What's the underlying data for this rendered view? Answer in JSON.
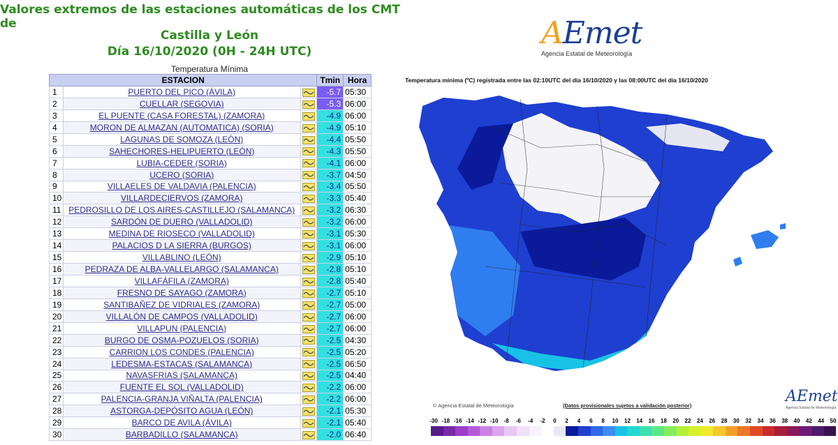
{
  "header": {
    "title_line1": "Valores extremos de las estaciones automáticas de los CMT de",
    "title_line2": "Castilla y León",
    "title_line3": "Día 16/10/2020 (0H - 24H UTC)"
  },
  "table": {
    "caption": "Temperatura Mínima",
    "col_station": "ESTACION",
    "col_tmin": "Tmin",
    "col_hora": "Hora",
    "rows": [
      {
        "n": "1",
        "station": "PUERTO DEL PICO (ÁVILA)",
        "tmin": "-5.7",
        "hora": "05:30",
        "color": "#7b5cf2"
      },
      {
        "n": "2",
        "station": "CUELLAR (SEGOVIA)",
        "tmin": "-5.3",
        "hora": "06:00",
        "color": "#7b5cf2"
      },
      {
        "n": "3",
        "station": "EL PUENTE (CASA FORESTAL) (ZAMORA)",
        "tmin": "-4.9",
        "hora": "06:00",
        "color": "#33e0e0"
      },
      {
        "n": "4",
        "station": "MORON DE ALMAZAN (AUTOMATICA) (SORIA)",
        "tmin": "-4.9",
        "hora": "05:10",
        "color": "#33e0e0"
      },
      {
        "n": "5",
        "station": "LAGUNAS DE SOMOZA (LEÓN)",
        "tmin": "-4.4",
        "hora": "05:50",
        "color": "#33e0e0"
      },
      {
        "n": "6",
        "station": "SAHECHORES-HELIPUERTO (LEÓN)",
        "tmin": "-4.3",
        "hora": "05:50",
        "color": "#33e0e0"
      },
      {
        "n": "7",
        "station": "LUBIA-CEDER (SORIA)",
        "tmin": "-4.1",
        "hora": "06:00",
        "color": "#33e0e0"
      },
      {
        "n": "8",
        "station": "UCERO (SORIA)",
        "tmin": "-3.7",
        "hora": "04:50",
        "color": "#33e0e0"
      },
      {
        "n": "9",
        "station": "VILLAELES DE VALDAVIA (PALENCIA)",
        "tmin": "-3.4",
        "hora": "05:50",
        "color": "#33e0e0"
      },
      {
        "n": "10",
        "station": "VILLARDECIERVOS (ZAMORA)",
        "tmin": "-3.3",
        "hora": "05:40",
        "color": "#33e0e0"
      },
      {
        "n": "11",
        "station": "PEDROSILLO DE LOS AIRES-CASTILLEJO (SALAMANCA)",
        "tmin": "-3.2",
        "hora": "06:30",
        "color": "#33e0e0"
      },
      {
        "n": "12",
        "station": "SARDÓN DE DUERO (VALLADOLID)",
        "tmin": "-3.2",
        "hora": "06:00",
        "color": "#33e0e0"
      },
      {
        "n": "13",
        "station": "MEDINA DE RIOSECO (VALLADOLID)",
        "tmin": "-3.1",
        "hora": "05:30",
        "color": "#33e0e0"
      },
      {
        "n": "14",
        "station": "PALACIOS D LA SIERRA (BURGOS)",
        "tmin": "-3.1",
        "hora": "06:00",
        "color": "#33e0e0"
      },
      {
        "n": "15",
        "station": "VILLABLINO (LEÓN)",
        "tmin": "-2.9",
        "hora": "05:10",
        "color": "#33e0e0"
      },
      {
        "n": "16",
        "station": "PEDRAZA DE ALBA-VALLELARGO (SALAMANCA)",
        "tmin": "-2.8",
        "hora": "05:10",
        "color": "#33e0e0"
      },
      {
        "n": "17",
        "station": "VILLAFÁFILA (ZAMORA)",
        "tmin": "-2.8",
        "hora": "05:40",
        "color": "#33e0e0"
      },
      {
        "n": "18",
        "station": "FRESNO DE SAYAGO (ZAMORA)",
        "tmin": "-2.7",
        "hora": "05:10",
        "color": "#33e0e0"
      },
      {
        "n": "19",
        "station": "SANTIBAÑEZ DE VIDRIALES (ZAMORA)",
        "tmin": "-2.7",
        "hora": "05:00",
        "color": "#33e0e0"
      },
      {
        "n": "20",
        "station": "VILLALÓN DE CAMPOS (VALLADOLID)",
        "tmin": "-2.7",
        "hora": "06:00",
        "color": "#33e0e0"
      },
      {
        "n": "21",
        "station": "VILLAPUN (PALENCIA)",
        "tmin": "-2.7",
        "hora": "06:00",
        "color": "#33e0e0"
      },
      {
        "n": "22",
        "station": "BURGO DE OSMA-POZUELOS (SORIA)",
        "tmin": "-2.5",
        "hora": "04:30",
        "color": "#33e0e0"
      },
      {
        "n": "23",
        "station": "CARRION LOS CONDES (PALENCIA)",
        "tmin": "-2.5",
        "hora": "05:20",
        "color": "#33e0e0"
      },
      {
        "n": "24",
        "station": "LEDESMA-ESTACAS (SALAMANCA)",
        "tmin": "-2.5",
        "hora": "06:50",
        "color": "#33e0e0"
      },
      {
        "n": "25",
        "station": "NAVASFRIAS (SALAMANCA)",
        "tmin": "-2.5",
        "hora": "04:40",
        "color": "#33e0e0"
      },
      {
        "n": "26",
        "station": "FUENTE EL SOL (VALLADOLID)",
        "tmin": "-2.2",
        "hora": "06:00",
        "color": "#33e0e0"
      },
      {
        "n": "27",
        "station": "PALENCIA-GRANJA VIÑALTA (PALENCIA)",
        "tmin": "-2.2",
        "hora": "06:00",
        "color": "#33e0e0"
      },
      {
        "n": "28",
        "station": "ASTORGA-DEPÓSITO AGUA (LEÓN)",
        "tmin": "-2.1",
        "hora": "05:30",
        "color": "#33e0e0"
      },
      {
        "n": "29",
        "station": "BARCO DE AVILA (ÁVILA)",
        "tmin": "-2.1",
        "hora": "05:40",
        "color": "#33e0e0"
      },
      {
        "n": "30",
        "station": "BARBADILLO (SALAMANCA)",
        "tmin": "-2.0",
        "hora": "06:40",
        "color": "#33e0e0"
      }
    ]
  },
  "logo": {
    "brand": "AEmet",
    "subtitle": "Agencia Estatal de Meteorología"
  },
  "map": {
    "caption": "Temperatura mínima (ºC) registrada entre las 02:10UTC del día 16/10/2020 y las 08:00UTC del día 16/10/2020",
    "footer_left": "© Agencia Estatal de Meteorología",
    "footer_mid": "(Datos provisionales sujetos a validación posterior)",
    "small_logo": "AEmet",
    "small_logo_sub": "Agencia Estatal de Meteorología",
    "colors": {
      "land_base": "#1e3fd0",
      "land_dark": "#0a1a9a",
      "cold": "#f4f4f8",
      "light": "#2f7ef0",
      "coast": "#18c2e6"
    }
  },
  "scale": {
    "labels": [
      "-30",
      "-18",
      "-16",
      "-14",
      "-12",
      "-10",
      "-8",
      "-6",
      "-4",
      "-2",
      "0",
      "2",
      "4",
      "6",
      "8",
      "10",
      "12",
      "14",
      "16",
      "18",
      "20",
      "22",
      "24",
      "26",
      "28",
      "30",
      "32",
      "34",
      "36",
      "38",
      "40",
      "42",
      "44",
      "50"
    ],
    "colors": [
      "#5b1a8a",
      "#7a2aa8",
      "#9b3fc8",
      "#b45ad8",
      "#c983e4",
      "#d9a7ee",
      "#e6c8f4",
      "#f0e0f8",
      "#f7f2fb",
      "#ffffff",
      "#e8e8f5",
      "#0a1a9a",
      "#1e3fd0",
      "#2f6ae8",
      "#3d8cf0",
      "#18c2e6",
      "#22d8d0",
      "#3de0b0",
      "#5ce888",
      "#86ee5a",
      "#b4f038",
      "#d8f02a",
      "#f2e82a",
      "#f4c82a",
      "#f2a02a",
      "#ec7828",
      "#e04a26",
      "#c82a2a",
      "#a81e3a",
      "#8a1a5a",
      "#6e1a7a",
      "#4e1a6a",
      "#3a1050"
    ]
  }
}
